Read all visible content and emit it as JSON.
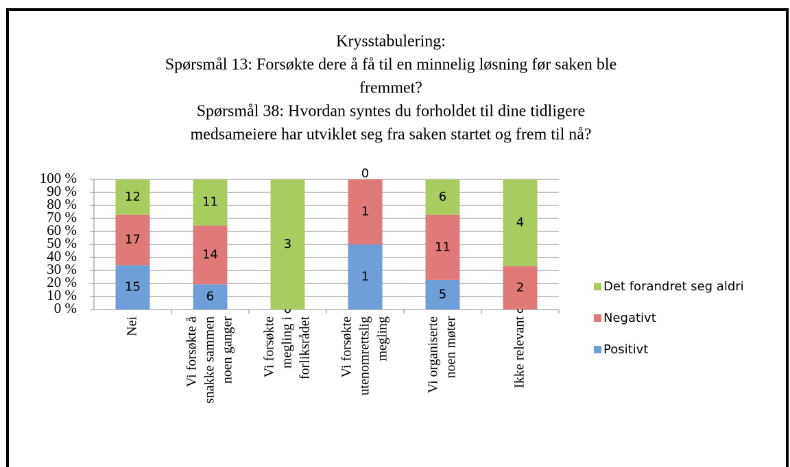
{
  "chart_data": {
    "type": "stacked_bar_percent",
    "title": [
      "Krysstabulering:",
      "Spørsmål 13: Forsøkte dere å få til en minnelig løsning før saken ble",
      "fremmet?",
      "Spørsmål 38: Hvordan syntes du forholdet til dine tidligere",
      "medsameiere har utviklet seg fra saken startet og frem til nå?"
    ],
    "categories": [
      "Nei",
      "Vi forsøkte å\nsnakke sammen\nnoen ganger",
      "Vi forsøkte\nmegling i\nforliksrådet",
      "Vi forsøkte\nutenomrettslig\nmegling",
      "Vi organiserte\nnoen møter",
      "Ikke relevant"
    ],
    "series": [
      {
        "name": "Positivt",
        "color": "#6f9fd8",
        "values": [
          15,
          6,
          0,
          1,
          5,
          0
        ]
      },
      {
        "name": "Negativt",
        "color": "#e07a78",
        "values": [
          17,
          14,
          0,
          1,
          11,
          2
        ]
      },
      {
        "name": "Det forandret seg aldri",
        "color": "#a9cc61",
        "values": [
          12,
          11,
          3,
          0,
          6,
          4
        ]
      }
    ],
    "ylim": [
      0,
      100
    ],
    "yticks": [
      {
        "value": 0,
        "label": "0 %"
      },
      {
        "value": 10,
        "label": "10 %"
      },
      {
        "value": 20,
        "label": "20 %"
      },
      {
        "value": 30,
        "label": "30 %"
      },
      {
        "value": 40,
        "label": "40 %"
      },
      {
        "value": 50,
        "label": "50 %"
      },
      {
        "value": 60,
        "label": "60 %"
      },
      {
        "value": 70,
        "label": "70 %"
      },
      {
        "value": 80,
        "label": "80 %"
      },
      {
        "value": 90,
        "label": "90 %"
      },
      {
        "value": 100,
        "label": "100 %"
      }
    ],
    "grid": true,
    "legend": "right"
  }
}
